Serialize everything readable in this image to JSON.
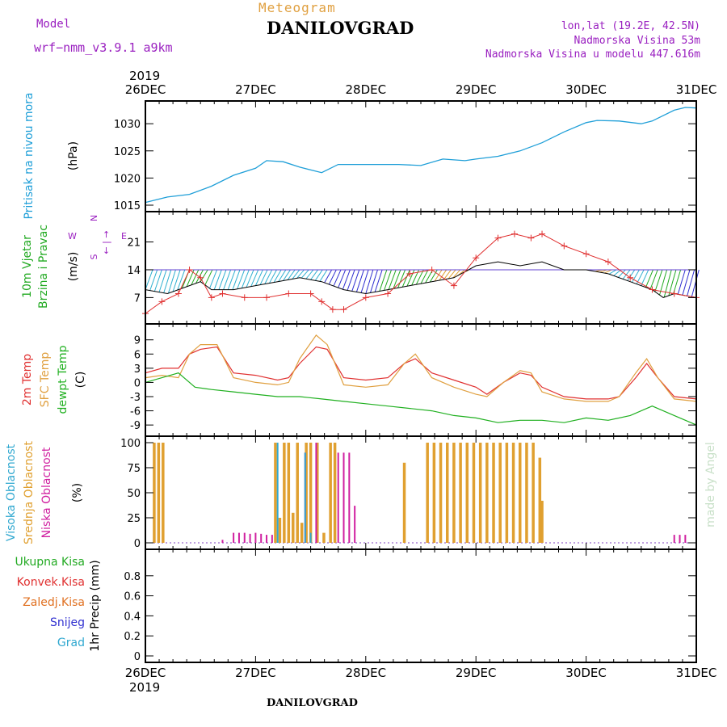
{
  "header": {
    "model_label": "Model",
    "model_name": "wrf−nmm_v3.9.1  a9km",
    "subtitle": "Meteogram",
    "title": "DANILOVGRAD",
    "coords": "lon,lat (19.2E, 42.5N)",
    "elevation": "Nadmorska Visina 53m",
    "model_elevation": "Nadmorska Visina u modelu 447.616m",
    "year_top": "2019",
    "year_bottom": "2019",
    "bottom_title": "DANILOVGRAD",
    "credit": "made by Angel"
  },
  "colors": {
    "pressure": "#1f9fd8",
    "wind_label": "#22aa22",
    "temp2m": "#e03030",
    "sfc": "#e0a040",
    "dewpt": "#20b020",
    "high_cloud": "#30a8d0",
    "mid_cloud": "#e0a030",
    "low_cloud": "#d020a0",
    "snow": "#3030d0",
    "compass": "#9a20c0",
    "credit": "#c8e0c8"
  },
  "chart_data": [
    {
      "type": "line",
      "panel": "pressure",
      "ylabel": "Pritisak na nivou mora",
      "unit": "(hPa)",
      "ylim": [
        1015,
        1033
      ],
      "yticks": [
        "1015",
        "1020",
        "1025",
        "1030"
      ],
      "xticks": [
        "26DEC",
        "27DEC",
        "28DEC",
        "29DEC",
        "30DEC",
        "31DEC"
      ],
      "series": [
        {
          "x": [
            0,
            0.2,
            0.4,
            0.6,
            0.8,
            1.0,
            1.1,
            1.25,
            1.4,
            1.6,
            1.75,
            1.9,
            2.0,
            2.3,
            2.5,
            2.7,
            2.9,
            3.0,
            3.2,
            3.4,
            3.6,
            3.8,
            4.0,
            4.1,
            4.3,
            4.5,
            4.6,
            4.8,
            4.9,
            5.0
          ],
          "values": [
            1015.5,
            1016.5,
            1017,
            1018.5,
            1020.5,
            1021.8,
            1023.2,
            1023,
            1022,
            1021,
            1022.5,
            1022.5,
            1022.5,
            1022.5,
            1022.3,
            1023.5,
            1023.2,
            1023.5,
            1024,
            1025,
            1026.5,
            1028.5,
            1030.2,
            1030.6,
            1030.5,
            1030,
            1030.5,
            1032.5,
            1033,
            1032.9
          ]
        }
      ]
    },
    {
      "type": "line",
      "panel": "wind",
      "ylabel": "10m Vjetar Brzina i Pravac",
      "unit": "(m/s)",
      "compass": [
        "N",
        "W",
        "← | →",
        "E",
        "S"
      ],
      "ylim": [
        2,
        27
      ],
      "yticks": [
        "7",
        "14",
        "21"
      ],
      "gust_band_top": 14,
      "series": [
        {
          "name": "speed",
          "x": [
            0,
            0.15,
            0.3,
            0.4,
            0.5,
            0.6,
            0.7,
            0.9,
            1.1,
            1.3,
            1.5,
            1.6,
            1.7,
            1.8,
            2.0,
            2.2,
            2.4,
            2.6,
            2.8,
            3.0,
            3.2,
            3.35,
            3.5,
            3.6,
            3.8,
            4.0,
            4.2,
            4.4,
            4.6,
            4.8,
            5.0
          ],
          "values": [
            3,
            6,
            8,
            14,
            12,
            7,
            8,
            7,
            7,
            8,
            8,
            6,
            4,
            4,
            7,
            8,
            13,
            14,
            10,
            17,
            22,
            23,
            22,
            23,
            20,
            18,
            16,
            12,
            9,
            8,
            7
          ]
        },
        {
          "name": "gust",
          "x": [
            0,
            0.2,
            0.4,
            0.5,
            0.6,
            0.8,
            1.0,
            1.2,
            1.4,
            1.6,
            1.8,
            2.0,
            2.2,
            2.4,
            2.6,
            2.8,
            3.0,
            3.2,
            3.4,
            3.6,
            3.8,
            4.0,
            4.2,
            4.4,
            4.6,
            4.7,
            4.8,
            5.0
          ],
          "values": [
            9,
            8,
            10,
            11,
            9,
            9,
            10,
            11,
            12,
            11,
            9,
            8,
            9,
            10,
            11,
            12,
            15,
            16,
            15,
            16,
            14,
            14,
            13,
            11,
            9,
            7,
            8,
            7
          ]
        }
      ]
    },
    {
      "type": "line",
      "panel": "temperature",
      "ylabel_2m": "2m Temp",
      "ylabel_sfc": "SFC Temp",
      "ylabel_dewpt": "dewpt Temp",
      "unit": "(C)",
      "ylim": [
        -10,
        11
      ],
      "yticks": [
        "-9",
        "-6",
        "-3",
        "0",
        "3",
        "6",
        "9"
      ],
      "series": [
        {
          "name": "2m Temp",
          "x": [
            0,
            0.15,
            0.3,
            0.4,
            0.5,
            0.65,
            0.8,
            1.0,
            1.2,
            1.3,
            1.4,
            1.55,
            1.65,
            1.8,
            2.0,
            2.2,
            2.35,
            2.45,
            2.6,
            2.8,
            3.0,
            3.1,
            3.25,
            3.4,
            3.5,
            3.6,
            3.8,
            4.0,
            4.2,
            4.3,
            4.45,
            4.55,
            4.65,
            4.8,
            5.0
          ],
          "values": [
            2,
            3,
            3,
            6,
            7,
            7.5,
            2,
            1.5,
            0.5,
            1,
            4,
            7.5,
            7,
            1,
            0.5,
            1,
            4,
            5,
            2,
            0.5,
            -1,
            -2.5,
            0,
            2,
            1.5,
            -1,
            -3,
            -3.5,
            -3.5,
            -3,
            1,
            4,
            1,
            -3,
            -3.5
          ]
        },
        {
          "name": "SFC Temp",
          "x": [
            0,
            0.15,
            0.3,
            0.4,
            0.5,
            0.65,
            0.8,
            1.0,
            1.2,
            1.3,
            1.4,
            1.55,
            1.65,
            1.8,
            2.0,
            2.2,
            2.35,
            2.45,
            2.6,
            2.8,
            3.0,
            3.1,
            3.25,
            3.4,
            3.5,
            3.6,
            3.8,
            4.0,
            4.2,
            4.3,
            4.45,
            4.55,
            4.65,
            4.8,
            5.0
          ],
          "values": [
            1,
            1.5,
            1,
            6,
            8,
            8,
            1,
            0,
            -0.5,
            0,
            5,
            10,
            8,
            -0.5,
            -1,
            -0.5,
            4,
            6,
            1,
            -1,
            -2.5,
            -3,
            0,
            2.5,
            2,
            -2,
            -3.5,
            -4,
            -4,
            -3,
            2,
            5,
            1,
            -3.5,
            -4
          ]
        },
        {
          "name": "dewpt Temp",
          "x": [
            0,
            0.15,
            0.3,
            0.45,
            0.6,
            0.8,
            1.0,
            1.2,
            1.4,
            1.6,
            1.8,
            2.0,
            2.2,
            2.4,
            2.6,
            2.8,
            3.0,
            3.2,
            3.4,
            3.6,
            3.8,
            4.0,
            4.2,
            4.4,
            4.6,
            4.8,
            5.0
          ],
          "values": [
            0,
            1,
            2,
            -1,
            -1.5,
            -2,
            -2.5,
            -3,
            -3,
            -3.5,
            -4,
            -4.5,
            -5,
            -5.5,
            -6,
            -7,
            -7.5,
            -8.5,
            -8,
            -8,
            -8.5,
            -7.5,
            -8,
            -7,
            -5,
            -7,
            -9
          ]
        }
      ]
    },
    {
      "type": "bar",
      "panel": "clouds",
      "ylabel_high": "Visoka Oblacnost",
      "ylabel_mid": "Srednja Oblacnost",
      "ylabel_low": "Niska Oblacnost",
      "unit": "(%)",
      "ylim": [
        0,
        100
      ],
      "yticks": [
        "0",
        "25",
        "50",
        "75",
        "100"
      ],
      "series": [
        {
          "name": "mid",
          "x": [
            0.08,
            0.12,
            0.16,
            1.18,
            1.22,
            1.26,
            1.3,
            1.34,
            1.38,
            1.42,
            1.46,
            1.5,
            1.56,
            1.62,
            1.68,
            1.72,
            2.35,
            2.56,
            2.62,
            2.68,
            2.74,
            2.8,
            2.86,
            2.92,
            2.98,
            3.04,
            3.1,
            3.16,
            3.22,
            3.28,
            3.34,
            3.4,
            3.46,
            3.52,
            3.58,
            3.6
          ],
          "values": [
            100,
            100,
            100,
            100,
            25,
            100,
            100,
            30,
            100,
            20,
            100,
            100,
            100,
            10,
            100,
            100,
            80,
            100,
            100,
            100,
            100,
            100,
            100,
            100,
            100,
            100,
            100,
            100,
            100,
            100,
            100,
            100,
            100,
            100,
            85,
            42
          ]
        },
        {
          "name": "low",
          "x": [
            0.7,
            0.8,
            0.85,
            0.9,
            0.95,
            1.0,
            1.05,
            1.1,
            1.15,
            1.45,
            1.55,
            1.75,
            1.8,
            1.85,
            1.9,
            4.8,
            4.85,
            4.9
          ],
          "values": [
            3,
            10,
            10,
            10,
            9,
            10,
            9,
            8,
            8,
            90,
            100,
            90,
            90,
            90,
            37,
            8,
            8,
            8
          ]
        },
        {
          "name": "high",
          "x": [
            1.2,
            1.45,
            1.5
          ],
          "values": [
            100,
            90,
            10
          ]
        }
      ]
    },
    {
      "type": "line",
      "panel": "precip",
      "ylabel": "1hr Precip",
      "unit": "(mm)",
      "ylim": [
        0,
        1
      ],
      "yticks": [
        "0",
        "0.2",
        "0.4",
        "0.6",
        "0.8"
      ],
      "legend": [
        "Ukupna Kisa",
        "Konvek.Kisa",
        "Zaledj.Kisa",
        "Snijeg",
        "Grad"
      ],
      "series": []
    }
  ]
}
